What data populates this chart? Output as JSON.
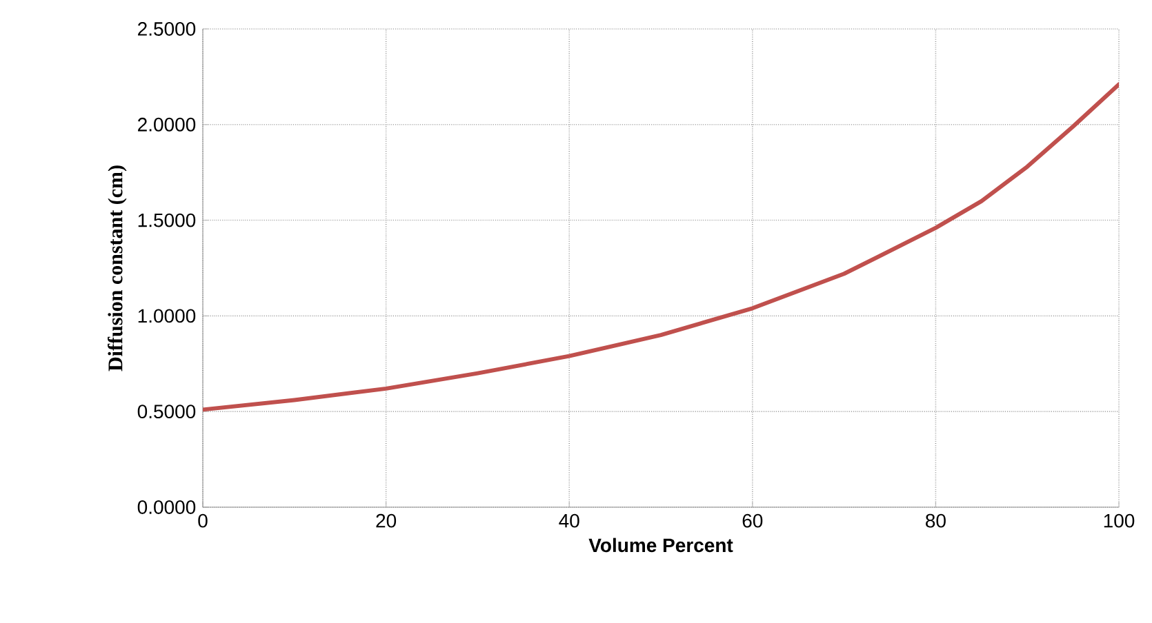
{
  "chart_data": {
    "type": "line",
    "xlabel": "Volume Percent",
    "ylabel": "Diffusion constant (cm)",
    "x": [
      0,
      10,
      20,
      30,
      40,
      50,
      60,
      70,
      80,
      85,
      90,
      95,
      100
    ],
    "series": [
      {
        "color": "#c0504d",
        "values": [
          0.51,
          0.56,
          0.62,
          0.7,
          0.79,
          0.9,
          1.04,
          1.22,
          1.46,
          1.6,
          1.78,
          1.99,
          2.21
        ]
      }
    ],
    "xlim": [
      0,
      100
    ],
    "xticks": [
      0,
      20,
      40,
      60,
      80,
      100
    ],
    "ylim": [
      0,
      2.5
    ],
    "yticks": [
      {
        "value": 0,
        "label": "0.0000"
      },
      {
        "value": 0.5,
        "label": "0.5000"
      },
      {
        "value": 1,
        "label": "1.0000"
      },
      {
        "value": 1.5,
        "label": "1.5000"
      },
      {
        "value": 2,
        "label": "2.0000"
      },
      {
        "value": 2.5,
        "label": "2.5000"
      }
    ],
    "grid": true,
    "marker": "none",
    "line_style": "solid"
  }
}
